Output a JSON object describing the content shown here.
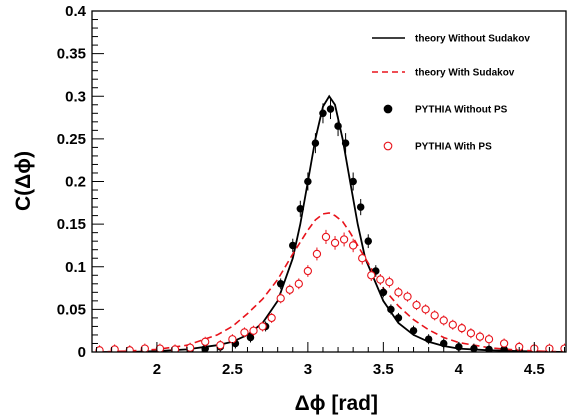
{
  "chart_data": {
    "type": "line",
    "xlabel": "Δϕ [rad]",
    "ylabel": "C(Δϕ)",
    "xlim": [
      1.57,
      4.71
    ],
    "ylim": [
      0,
      0.4
    ],
    "x_ticks": [
      2,
      2.5,
      3,
      3.5,
      4,
      4.5
    ],
    "x_tick_labels": [
      "2",
      "2.5",
      "3",
      "3.5",
      "4",
      "4.5"
    ],
    "y_ticks": [
      0,
      0.05,
      0.1,
      0.15,
      0.2,
      0.25,
      0.3,
      0.35,
      0.4
    ],
    "y_tick_labels": [
      "0",
      "0.05",
      "0.1",
      "0.15",
      "0.2",
      "0.25",
      "0.3",
      "0.35",
      "0.4"
    ],
    "grid": false,
    "legend_position": "top-right",
    "colors": {
      "black": "#000000",
      "red": "#e8131b"
    },
    "series": [
      {
        "name": "theory Without Sudakov",
        "style": "solid-line",
        "color": "#000000",
        "x": [
          1.6,
          1.8,
          2.0,
          2.2,
          2.4,
          2.5,
          2.6,
          2.7,
          2.8,
          2.9,
          2.95,
          3.0,
          3.05,
          3.1,
          3.1416,
          3.18,
          3.23,
          3.28,
          3.33,
          3.38,
          3.5,
          3.6,
          3.7,
          3.8,
          3.9,
          4.0,
          4.2,
          4.4,
          4.7
        ],
        "y": [
          0.0,
          0.0,
          0.001,
          0.003,
          0.008,
          0.012,
          0.02,
          0.034,
          0.06,
          0.11,
          0.15,
          0.2,
          0.25,
          0.288,
          0.3,
          0.29,
          0.25,
          0.2,
          0.15,
          0.11,
          0.06,
          0.034,
          0.02,
          0.012,
          0.007,
          0.004,
          0.002,
          0.001,
          0.0
        ]
      },
      {
        "name": "theory With Sudakov",
        "style": "dashed-line",
        "color": "#e8131b",
        "x": [
          1.6,
          1.8,
          2.0,
          2.2,
          2.4,
          2.5,
          2.6,
          2.7,
          2.8,
          2.9,
          3.0,
          3.05,
          3.1,
          3.1416,
          3.18,
          3.23,
          3.28,
          3.38,
          3.5,
          3.6,
          3.7,
          3.8,
          3.9,
          4.0,
          4.2,
          4.4,
          4.7
        ],
        "y": [
          0.0,
          0.001,
          0.003,
          0.008,
          0.02,
          0.03,
          0.045,
          0.062,
          0.085,
          0.115,
          0.143,
          0.155,
          0.162,
          0.163,
          0.16,
          0.153,
          0.14,
          0.11,
          0.075,
          0.054,
          0.038,
          0.026,
          0.017,
          0.011,
          0.005,
          0.002,
          0.0
        ]
      },
      {
        "name": "PYTHIA Without PS",
        "style": "filled-markers",
        "color": "#000000",
        "x": [
          1.62,
          1.72,
          1.82,
          1.92,
          2.02,
          2.12,
          2.22,
          2.32,
          2.42,
          2.52,
          2.62,
          2.72,
          2.82,
          2.9,
          2.95,
          3.0,
          3.05,
          3.1,
          3.15,
          3.2,
          3.25,
          3.3,
          3.35,
          3.4,
          3.45,
          3.5,
          3.55,
          3.6,
          3.7,
          3.8,
          3.9,
          4.0,
          4.1,
          4.2,
          4.3,
          4.4,
          4.5,
          4.6,
          4.7
        ],
        "y": [
          0.001,
          0.0,
          0.001,
          0.002,
          0.002,
          0.002,
          0.003,
          0.004,
          0.006,
          0.01,
          0.017,
          0.03,
          0.08,
          0.125,
          0.168,
          0.2,
          0.245,
          0.28,
          0.285,
          0.265,
          0.245,
          0.2,
          0.17,
          0.13,
          0.095,
          0.07,
          0.05,
          0.04,
          0.025,
          0.015,
          0.01,
          0.006,
          0.004,
          0.003,
          0.003,
          0.002,
          0.002,
          0.001,
          0.001
        ]
      },
      {
        "name": "PYTHIA With PS",
        "style": "open-markers",
        "color": "#e8131b",
        "x": [
          1.62,
          1.72,
          1.82,
          1.92,
          2.02,
          2.12,
          2.22,
          2.32,
          2.42,
          2.5,
          2.58,
          2.64,
          2.7,
          2.76,
          2.82,
          2.88,
          2.94,
          3.0,
          3.06,
          3.12,
          3.18,
          3.24,
          3.3,
          3.36,
          3.42,
          3.48,
          3.54,
          3.6,
          3.66,
          3.72,
          3.78,
          3.84,
          3.9,
          3.96,
          4.02,
          4.08,
          4.14,
          4.2,
          4.3,
          4.4,
          4.5,
          4.6,
          4.7
        ],
        "y": [
          0.002,
          0.003,
          0.002,
          0.004,
          0.004,
          0.003,
          0.005,
          0.012,
          0.008,
          0.015,
          0.023,
          0.025,
          0.03,
          0.04,
          0.063,
          0.073,
          0.08,
          0.095,
          0.115,
          0.135,
          0.128,
          0.132,
          0.125,
          0.11,
          0.09,
          0.085,
          0.082,
          0.07,
          0.065,
          0.055,
          0.05,
          0.043,
          0.037,
          0.032,
          0.028,
          0.022,
          0.018,
          0.015,
          0.01,
          0.006,
          0.004,
          0.004,
          0.004
        ]
      }
    ]
  }
}
